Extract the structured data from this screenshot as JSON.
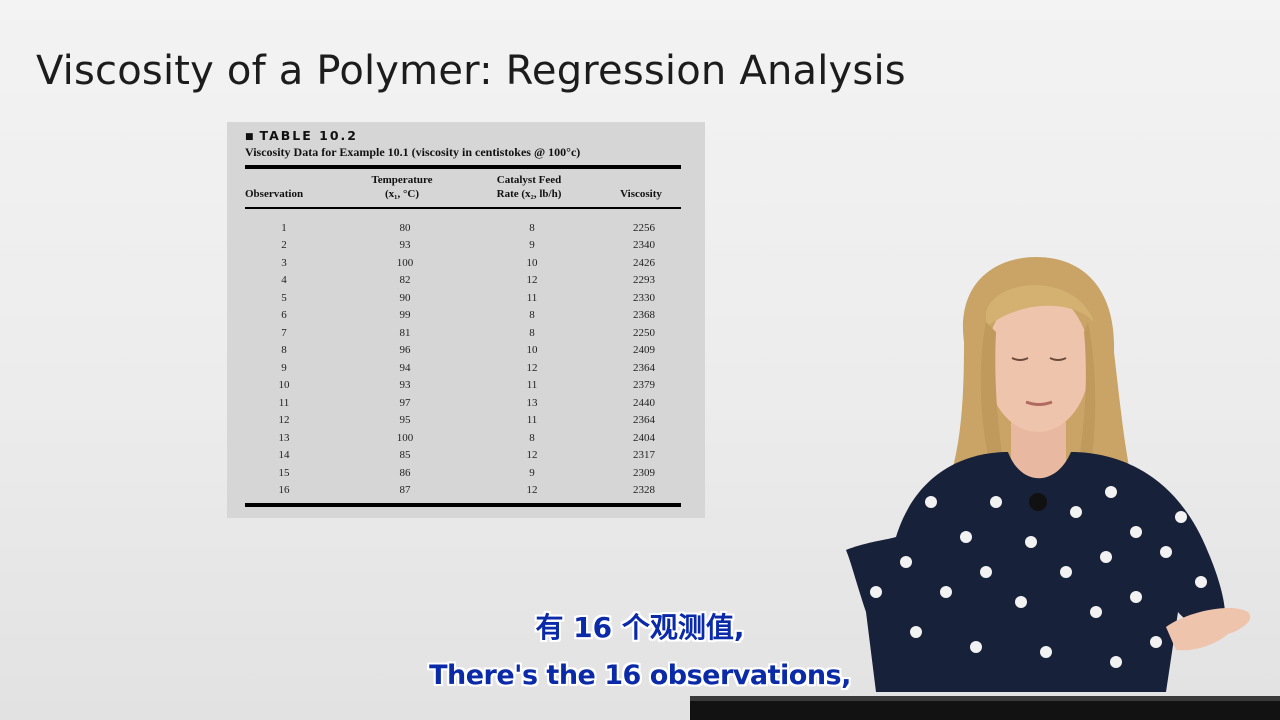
{
  "slide": {
    "title": "Viscosity of a Polymer: Regression Analysis"
  },
  "table": {
    "label": "TABLE 10.2",
    "caption": "Viscosity Data for Example 10.1 (viscosity in centistokes @ 100°c)",
    "headers": {
      "observation": "Observation",
      "temperature_line1": "Temperature",
      "temperature_line2": "(x₁, °C)",
      "rate_line1": "Catalyst Feed",
      "rate_line2": "Rate (x₂, lb/h)",
      "viscosity": "Viscosity"
    },
    "rows": [
      {
        "obs": "1",
        "temp": "80",
        "rate": "8",
        "visc": "2256"
      },
      {
        "obs": "2",
        "temp": "93",
        "rate": "9",
        "visc": "2340"
      },
      {
        "obs": "3",
        "temp": "100",
        "rate": "10",
        "visc": "2426"
      },
      {
        "obs": "4",
        "temp": "82",
        "rate": "12",
        "visc": "2293"
      },
      {
        "obs": "5",
        "temp": "90",
        "rate": "11",
        "visc": "2330"
      },
      {
        "obs": "6",
        "temp": "99",
        "rate": "8",
        "visc": "2368"
      },
      {
        "obs": "7",
        "temp": "81",
        "rate": "8",
        "visc": "2250"
      },
      {
        "obs": "8",
        "temp": "96",
        "rate": "10",
        "visc": "2409"
      },
      {
        "obs": "9",
        "temp": "94",
        "rate": "12",
        "visc": "2364"
      },
      {
        "obs": "10",
        "temp": "93",
        "rate": "11",
        "visc": "2379"
      },
      {
        "obs": "11",
        "temp": "97",
        "rate": "13",
        "visc": "2440"
      },
      {
        "obs": "12",
        "temp": "95",
        "rate": "11",
        "visc": "2364"
      },
      {
        "obs": "13",
        "temp": "100",
        "rate": "8",
        "visc": "2404"
      },
      {
        "obs": "14",
        "temp": "85",
        "rate": "12",
        "visc": "2317"
      },
      {
        "obs": "15",
        "temp": "86",
        "rate": "9",
        "visc": "2309"
      },
      {
        "obs": "16",
        "temp": "87",
        "rate": "12",
        "visc": "2328"
      }
    ]
  },
  "subtitles": {
    "chinese": "有 16 个观测值,",
    "english": "There's the 16 observations,"
  },
  "colors": {
    "subtitle_text": "#0a2aa8",
    "table_panel": "#d6d6d6",
    "presenter_dress": "#18213a",
    "presenter_hair": "#c9a466"
  }
}
